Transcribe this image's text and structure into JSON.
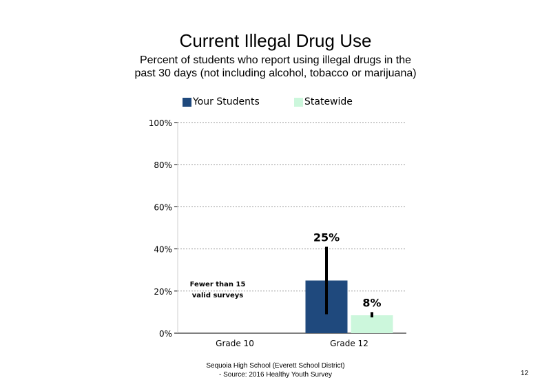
{
  "title": "Current Illegal Drug Use",
  "subtitle": "Percent of students who report using illegal drugs in the past 30 days (not including alcohol, tobacco or marijuana)",
  "legend": {
    "your_students": "Your Students",
    "statewide": "Statewide"
  },
  "colors": {
    "your_students": "#1F497D",
    "statewide": "#CCF7DC"
  },
  "chart_data": {
    "type": "bar",
    "categories": [
      "Grade 10",
      "Grade 12"
    ],
    "series": [
      {
        "name": "Your Students",
        "values": [
          null,
          25
        ],
        "data_labels": [
          "",
          "25%"
        ],
        "error_low": [
          null,
          9
        ],
        "error_high": [
          null,
          41
        ]
      },
      {
        "name": "Statewide",
        "values": [
          null,
          8.5
        ],
        "data_labels": [
          "",
          "8%"
        ],
        "error_low": [
          null,
          7.5
        ],
        "error_high": [
          null,
          10
        ]
      }
    ],
    "ylim": [
      0,
      100
    ],
    "yticks": [
      0,
      20,
      40,
      60,
      80,
      100
    ],
    "ytick_labels": [
      "0%",
      "20%",
      "40%",
      "60%",
      "80%",
      "100%"
    ],
    "gridlines": "dotted",
    "legend_position": "top",
    "annotations": [
      {
        "category": "Grade 10",
        "text_lines": [
          "Fewer than 15",
          "valid surveys"
        ]
      }
    ]
  },
  "footer": {
    "line1": "Sequoia High School (Everett School District)",
    "line2": "- Source: 2016 Healthy Youth Survey"
  },
  "page_number": "12"
}
